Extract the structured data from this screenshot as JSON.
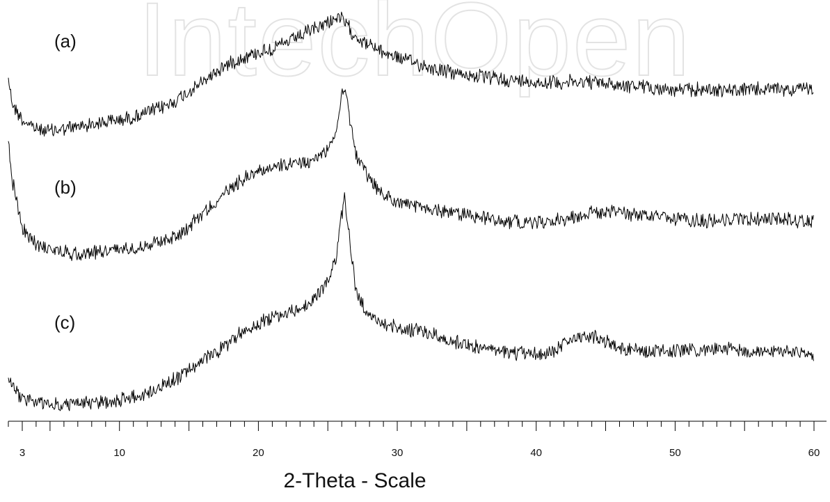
{
  "watermark": "IntechOpen",
  "chart_data": {
    "type": "line",
    "title": "",
    "xlabel": "2-Theta - Scale",
    "ylabel": "",
    "xlim": [
      2.0,
      60.5
    ],
    "x_ticks": [
      3,
      10,
      20,
      30,
      40,
      50,
      60
    ],
    "grid": false,
    "line_color": "#000000",
    "series": [
      {
        "name": "(a)",
        "noise": 9,
        "points": [
          [
            2.0,
            110
          ],
          [
            2.3,
            150
          ],
          [
            3,
            172
          ],
          [
            4,
            185
          ],
          [
            5,
            188
          ],
          [
            6,
            185
          ],
          [
            7,
            182
          ],
          [
            8,
            178
          ],
          [
            9,
            175
          ],
          [
            10,
            172
          ],
          [
            11,
            168
          ],
          [
            12,
            162
          ],
          [
            13,
            155
          ],
          [
            14,
            145
          ],
          [
            15,
            132
          ],
          [
            16,
            118
          ],
          [
            17,
            102
          ],
          [
            18,
            90
          ],
          [
            19,
            82
          ],
          [
            20,
            75
          ],
          [
            21,
            70
          ],
          [
            22,
            62
          ],
          [
            23,
            52
          ],
          [
            24,
            42
          ],
          [
            25,
            32
          ],
          [
            25.6,
            25
          ],
          [
            26.0,
            28
          ],
          [
            26.5,
            40
          ],
          [
            27,
            52
          ],
          [
            28,
            65
          ],
          [
            29,
            75
          ],
          [
            30,
            82
          ],
          [
            32,
            95
          ],
          [
            34,
            105
          ],
          [
            36,
            110
          ],
          [
            38,
            115
          ],
          [
            40,
            118
          ],
          [
            42,
            118
          ],
          [
            44,
            118
          ],
          [
            46,
            122
          ],
          [
            48,
            125
          ],
          [
            50,
            130
          ],
          [
            52,
            128
          ],
          [
            54,
            130
          ],
          [
            56,
            128
          ],
          [
            58,
            128
          ],
          [
            60,
            128
          ]
        ]
      },
      {
        "name": "(b)",
        "noise": 9,
        "points": [
          [
            2.0,
            205
          ],
          [
            2.3,
            260
          ],
          [
            3,
            330
          ],
          [
            4,
            350
          ],
          [
            5,
            358
          ],
          [
            6,
            362
          ],
          [
            7,
            365
          ],
          [
            8,
            362
          ],
          [
            9,
            360
          ],
          [
            10,
            358
          ],
          [
            11,
            355
          ],
          [
            12,
            352
          ],
          [
            13,
            345
          ],
          [
            14,
            340
          ],
          [
            15,
            325
          ],
          [
            16,
            305
          ],
          [
            17,
            290
          ],
          [
            18,
            270
          ],
          [
            19,
            255
          ],
          [
            20,
            245
          ],
          [
            21,
            240
          ],
          [
            22,
            238
          ],
          [
            23,
            235
          ],
          [
            24,
            230
          ],
          [
            25,
            215
          ],
          [
            25.6,
            190
          ],
          [
            26.0,
            130
          ],
          [
            26.2,
            125
          ],
          [
            26.5,
            160
          ],
          [
            27,
            220
          ],
          [
            28,
            260
          ],
          [
            29,
            280
          ],
          [
            30,
            290
          ],
          [
            32,
            300
          ],
          [
            34,
            305
          ],
          [
            36,
            312
          ],
          [
            38,
            318
          ],
          [
            40,
            320
          ],
          [
            42,
            315
          ],
          [
            44,
            305
          ],
          [
            46,
            305
          ],
          [
            48,
            310
          ],
          [
            50,
            315
          ],
          [
            52,
            318
          ],
          [
            54,
            315
          ],
          [
            56,
            315
          ],
          [
            58,
            315
          ],
          [
            60,
            318
          ]
        ]
      },
      {
        "name": "(c)",
        "noise": 9,
        "points": [
          [
            2.0,
            540
          ],
          [
            2.5,
            560
          ],
          [
            3,
            572
          ],
          [
            4,
            578
          ],
          [
            5,
            582
          ],
          [
            6,
            582
          ],
          [
            7,
            580
          ],
          [
            8,
            578
          ],
          [
            9,
            578
          ],
          [
            10,
            575
          ],
          [
            11,
            570
          ],
          [
            12,
            565
          ],
          [
            13,
            555
          ],
          [
            14,
            545
          ],
          [
            15,
            532
          ],
          [
            16,
            518
          ],
          [
            17,
            505
          ],
          [
            18,
            490
          ],
          [
            19,
            475
          ],
          [
            20,
            465
          ],
          [
            21,
            455
          ],
          [
            22,
            450
          ],
          [
            23,
            445
          ],
          [
            24,
            430
          ],
          [
            25,
            405
          ],
          [
            25.6,
            370
          ],
          [
            25.9,
            320
          ],
          [
            26.2,
            285
          ],
          [
            26.5,
            330
          ],
          [
            27,
            420
          ],
          [
            28,
            455
          ],
          [
            29,
            465
          ],
          [
            30,
            470
          ],
          [
            32,
            478
          ],
          [
            34,
            490
          ],
          [
            36,
            500
          ],
          [
            38,
            508
          ],
          [
            40,
            508
          ],
          [
            41,
            508
          ],
          [
            42,
            495
          ],
          [
            43,
            482
          ],
          [
            44,
            482
          ],
          [
            46,
            498
          ],
          [
            48,
            505
          ],
          [
            50,
            505
          ],
          [
            52,
            502
          ],
          [
            54,
            502
          ],
          [
            56,
            505
          ],
          [
            58,
            505
          ],
          [
            60,
            510
          ]
        ]
      }
    ]
  }
}
